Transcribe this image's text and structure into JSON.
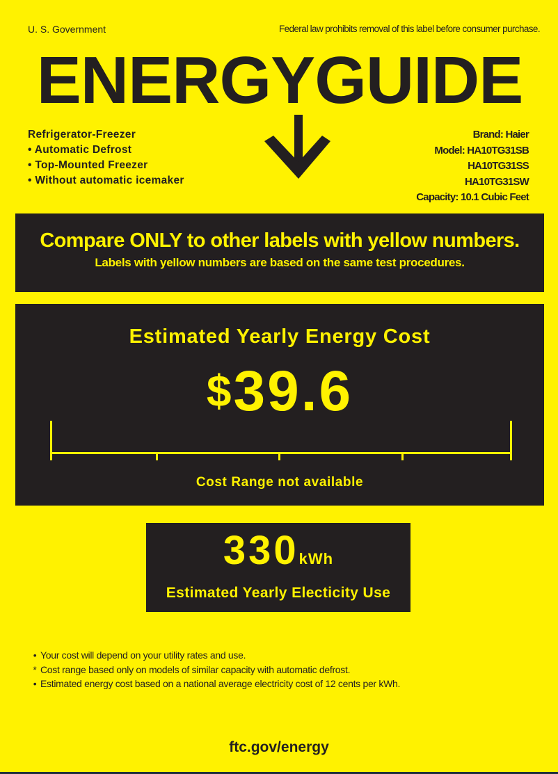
{
  "header": {
    "government": "U. S. Government",
    "federal_notice": "Federal law prohibits removal of this label before consumer purchase.",
    "title": "ENERGYGUIDE",
    "arrow_icon": "down-arrow-icon"
  },
  "product": {
    "type": "Refrigerator-Freezer",
    "features": [
      "Automatic Defrost",
      "Top-Mounted Freezer",
      "Without automatic icemaker"
    ]
  },
  "model_info": {
    "brand": "Brand: Haier",
    "model": "Model: HA10TG31SB",
    "models_extra": [
      "HA10TG31SS",
      "HA10TG31SW"
    ],
    "capacity": "Capacity: 10.1 Cubic Feet"
  },
  "compare": {
    "headline": "Compare ONLY to other labels with yellow numbers.",
    "subline": "Labels with yellow numbers are based on the same test procedures."
  },
  "cost": {
    "heading": "Estimated Yearly Energy Cost",
    "currency": "$",
    "value": "39.6",
    "range_note": "Cost Range not available"
  },
  "electricity": {
    "value": "330",
    "unit": "kWh",
    "label": "Estimated Yearly Electicity Use"
  },
  "notes": [
    {
      "bullet": "•",
      "text": "Your cost will depend on your utility rates and use."
    },
    {
      "bullet": "*",
      "text": "Cost range based only on models of similar capacity with automatic defrost."
    },
    {
      "bullet": "•",
      "text": "Estimated energy cost based on a national average electricity cost of 12 cents per kWh."
    }
  ],
  "footer": {
    "link": "ftc.gov/energy"
  },
  "colors": {
    "label_yellow": "#fff200",
    "label_black": "#231f20"
  }
}
